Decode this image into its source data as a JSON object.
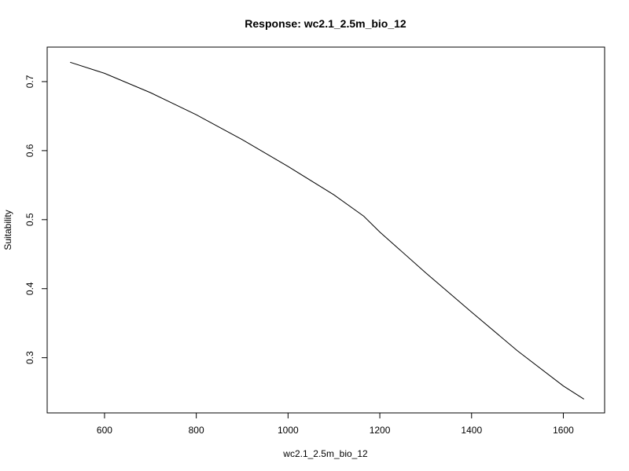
{
  "chart_data": {
    "type": "line",
    "title": "Response: wc2.1_2.5m_bio_12",
    "xlabel": "wc2.1_2.5m_bio_12",
    "ylabel": "Suitability",
    "xlim": [
      475,
      1690
    ],
    "ylim": [
      0.22,
      0.75
    ],
    "xticks": [
      600,
      800,
      1000,
      1200,
      1400,
      1600
    ],
    "xtick_labels": [
      "600",
      "800",
      "1000",
      "1200",
      "1400",
      "1600"
    ],
    "yticks": [
      0.3,
      0.4,
      0.5,
      0.6,
      0.7
    ],
    "ytick_labels": [
      "0.3",
      "0.4",
      "0.5",
      "0.6",
      "0.7"
    ],
    "grid": false,
    "series": [
      {
        "x": [
          525,
          600,
          700,
          800,
          900,
          1000,
          1100,
          1165,
          1200,
          1300,
          1400,
          1500,
          1600,
          1645
        ],
        "y": [
          0.728,
          0.712,
          0.684,
          0.652,
          0.616,
          0.577,
          0.536,
          0.505,
          0.482,
          0.423,
          0.366,
          0.31,
          0.259,
          0.24
        ]
      }
    ],
    "colors": {
      "line": "#000000",
      "frame": "#000000"
    }
  }
}
